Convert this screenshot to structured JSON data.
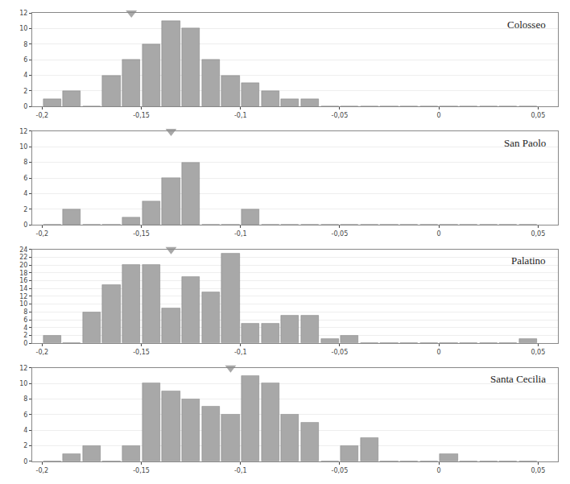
{
  "chart_data": [
    {
      "type": "histogram",
      "title": "Colosseo",
      "bins": [
        -0.2,
        -0.19,
        -0.18,
        -0.17,
        -0.16,
        -0.15,
        -0.14,
        -0.13,
        -0.12,
        -0.11,
        -0.1,
        -0.09,
        -0.08,
        -0.07,
        -0.06,
        -0.05,
        -0.04,
        -0.03,
        -0.02,
        -0.01,
        0.0,
        0.01,
        0.02,
        0.03,
        0.04,
        0.05
      ],
      "values": [
        1,
        2,
        0,
        4,
        6,
        8,
        11,
        10,
        6,
        4,
        3,
        2,
        1,
        1,
        0,
        0,
        0,
        0,
        0,
        0,
        0,
        0,
        0,
        0,
        0
      ],
      "pointer_x": -0.155,
      "color": "#a8a8a8",
      "xlim": [
        -0.205,
        0.06
      ],
      "xticks": [
        {
          "value": -0.2,
          "label": "-0,2"
        },
        {
          "value": -0.15,
          "label": "-0,15"
        },
        {
          "value": -0.1,
          "label": "-0,1"
        },
        {
          "value": -0.05,
          "label": "-0,05"
        },
        0,
        {
          "value": 0.05,
          "label": "0,05"
        }
      ],
      "ylim": [
        0,
        12
      ],
      "yticks": [
        0,
        2,
        4,
        6,
        8,
        10,
        12
      ],
      "grid": true
    },
    {
      "type": "histogram",
      "title": "San Paolo",
      "bins": [
        -0.2,
        -0.19,
        -0.18,
        -0.17,
        -0.16,
        -0.15,
        -0.14,
        -0.13,
        -0.12,
        -0.11,
        -0.1,
        -0.09,
        -0.08,
        -0.07,
        -0.06,
        -0.05,
        -0.04,
        -0.03,
        -0.02,
        -0.01,
        0.0,
        0.01,
        0.02,
        0.03,
        0.04,
        0.05
      ],
      "values": [
        0,
        2,
        0,
        0,
        1,
        3,
        6,
        8,
        0,
        0,
        2,
        0,
        0,
        0,
        0,
        0,
        0,
        0,
        0,
        0,
        0,
        0,
        0,
        0,
        0
      ],
      "pointer_x": -0.135,
      "color": "#a8a8a8",
      "xlim": [
        -0.205,
        0.06
      ],
      "xticks": [
        {
          "value": -0.2,
          "label": "-0,2"
        },
        {
          "value": -0.15,
          "label": "-0,15"
        },
        {
          "value": -0.1,
          "label": "-0,1"
        },
        {
          "value": -0.05,
          "label": "-0,05"
        },
        0,
        {
          "value": 0.05,
          "label": "0,05"
        }
      ],
      "ylim": [
        0,
        12
      ],
      "yticks": [
        0,
        2,
        4,
        6,
        8,
        10,
        12
      ],
      "grid": true
    },
    {
      "type": "histogram",
      "title": "Palatino",
      "bins": [
        -0.2,
        -0.19,
        -0.18,
        -0.17,
        -0.16,
        -0.15,
        -0.14,
        -0.13,
        -0.12,
        -0.11,
        -0.1,
        -0.09,
        -0.08,
        -0.07,
        -0.06,
        -0.05,
        -0.04,
        -0.03,
        -0.02,
        -0.01,
        0.0,
        0.01,
        0.02,
        0.03,
        0.04,
        0.05
      ],
      "values": [
        2,
        0,
        8,
        15,
        20,
        20,
        9,
        17,
        13,
        23,
        5,
        5,
        7,
        7,
        1,
        2,
        0,
        0,
        0,
        0,
        0,
        0,
        0,
        0,
        1
      ],
      "pointer_x": -0.135,
      "color": "#a8a8a8",
      "xlim": [
        -0.205,
        0.06
      ],
      "xticks": [
        {
          "value": -0.2,
          "label": "-0,2"
        },
        {
          "value": -0.15,
          "label": "-0,15"
        },
        {
          "value": -0.1,
          "label": "-0,1"
        },
        {
          "value": -0.05,
          "label": "-0,05"
        },
        0,
        {
          "value": 0.05,
          "label": "0,05"
        }
      ],
      "ylim": [
        0,
        24
      ],
      "yticks": [
        0,
        2,
        4,
        6,
        8,
        10,
        12,
        14,
        16,
        18,
        20,
        22,
        24
      ],
      "grid": true
    },
    {
      "type": "histogram",
      "title": "Santa Cecilia",
      "bins": [
        -0.2,
        -0.19,
        -0.18,
        -0.17,
        -0.16,
        -0.15,
        -0.14,
        -0.13,
        -0.12,
        -0.11,
        -0.1,
        -0.09,
        -0.08,
        -0.07,
        -0.06,
        -0.05,
        -0.04,
        -0.03,
        -0.02,
        -0.01,
        0.0,
        0.01,
        0.02,
        0.03,
        0.04,
        0.05
      ],
      "values": [
        0,
        1,
        2,
        0,
        2,
        10,
        9,
        8,
        7,
        6,
        11,
        10,
        6,
        5,
        0,
        2,
        3,
        0,
        0,
        0,
        1,
        0,
        0,
        0,
        0
      ],
      "pointer_x": -0.105,
      "color": "#a8a8a8",
      "xlim": [
        -0.205,
        0.06
      ],
      "xticks": [
        {
          "value": -0.2,
          "label": "-0,2"
        },
        {
          "value": -0.15,
          "label": "-0,15"
        },
        {
          "value": -0.1,
          "label": "-0,1"
        },
        {
          "value": -0.05,
          "label": "-0,05"
        },
        0,
        {
          "value": 0.05,
          "label": "0,05"
        }
      ],
      "ylim": [
        0,
        12
      ],
      "yticks": [
        0,
        2,
        4,
        6,
        8,
        10,
        12
      ],
      "grid": true
    }
  ]
}
